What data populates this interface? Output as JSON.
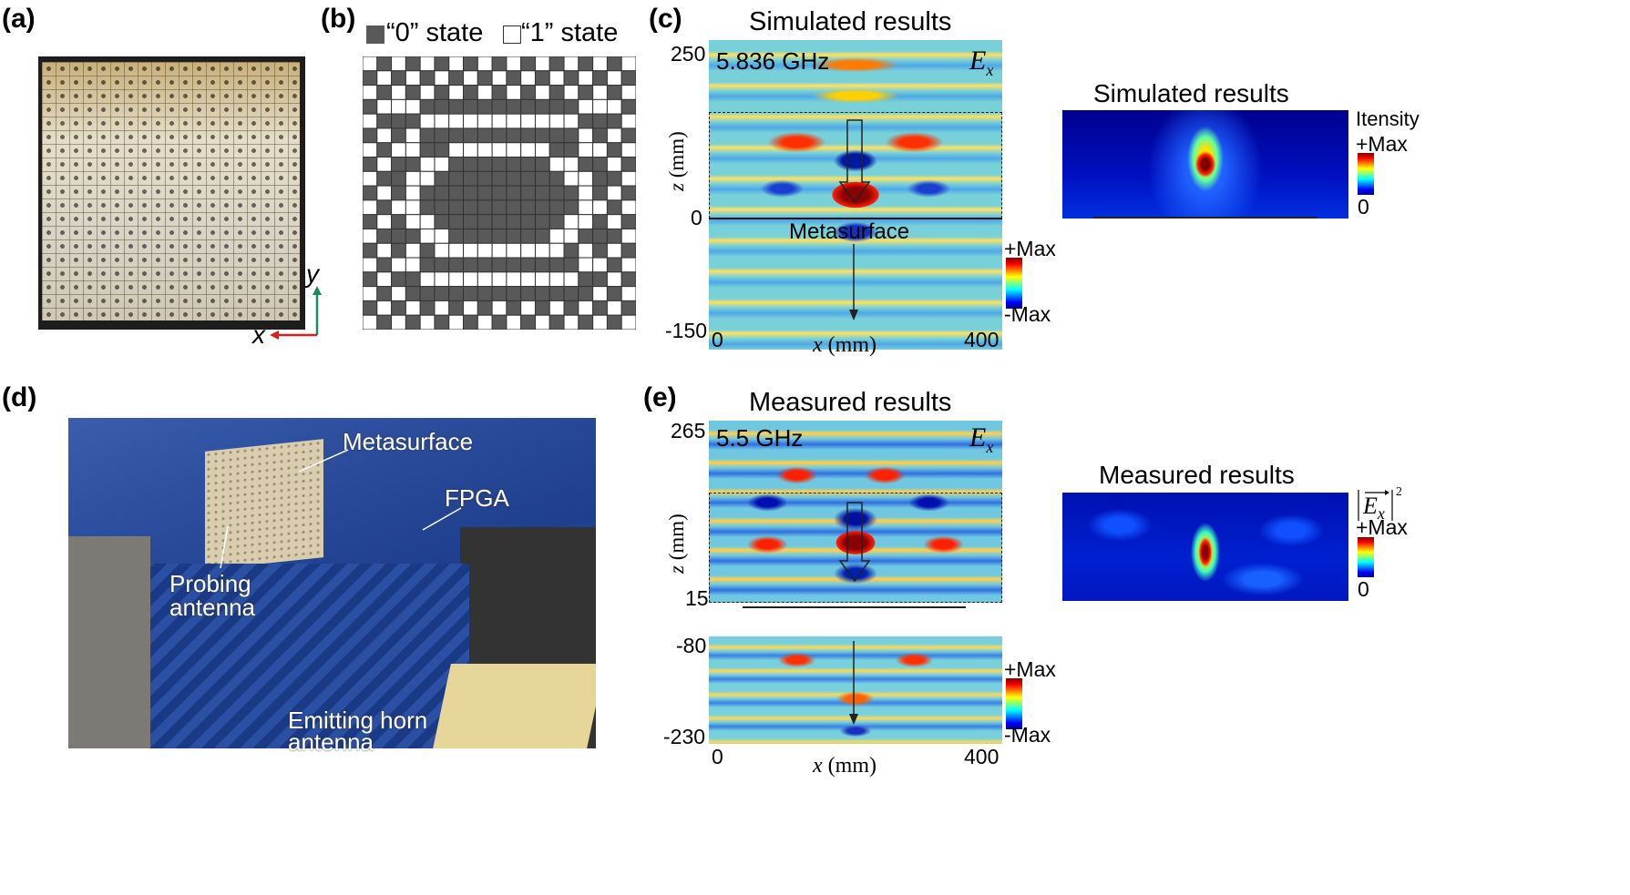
{
  "panels": {
    "a": {
      "label": "(a)"
    },
    "b": {
      "label": "(b)",
      "legend_0": "“0” state",
      "legend_1": "“1” state",
      "grid": [
        "1010101010101010101",
        "0101010101010101010",
        "1010101010101010101",
        "0111000000000001110",
        "1000111111111110001",
        "0101000000000001010",
        "1011001111111001101",
        "0100110000000110010",
        "1001100000000011001",
        "0101000000000001010",
        "1011000000000001101",
        "0101100000000011010",
        "1000110000000110001",
        "0101011111111101010",
        "1011000000000001101",
        "0100111111111110010",
        "1010000000000000101",
        "0101010101010101010",
        "1010101010101010101"
      ]
    },
    "c": {
      "label": "(c)",
      "title": "Simulated results",
      "freq": "5.836 GHz",
      "component": "E",
      "component_sub": "x",
      "y_ticks": [
        "250",
        "0",
        "-150"
      ],
      "x_ticks": [
        "0",
        "400"
      ],
      "xlabel_var": "x",
      "xlabel_unit": " (mm)",
      "ylabel_var": "z",
      "ylabel_unit": " (mm)",
      "metasurface": "Metasurface",
      "cbar_max": "+Max",
      "cbar_min": "-Max",
      "right_title": "Simulated results",
      "right_cbar_title": "Itensity",
      "right_cbar_max": "+Max",
      "right_cbar_min": "0"
    },
    "d": {
      "label": "(d)",
      "metasurface": "Metasurface",
      "fpga": "FPGA",
      "probing_1": "Probing",
      "probing_2": "antenna",
      "horn_1": "Emitting horn",
      "horn_2": "antenna"
    },
    "e": {
      "label": "(e)",
      "title": "Measured results",
      "freq": "5.5 GHz",
      "component": "E",
      "component_sub": "x",
      "upper_y_ticks": [
        "265",
        "15"
      ],
      "lower_y_ticks": [
        "-80",
        "-230"
      ],
      "x_ticks": [
        "0",
        "400"
      ],
      "xlabel_var": "x",
      "xlabel_unit": " (mm)",
      "ylabel_var": "z",
      "ylabel_unit": " (mm)",
      "cbar_max": "+Max",
      "cbar_min": "-Max",
      "right_title": "Measured results",
      "right_cbar_max": "+Max",
      "right_cbar_min": "0"
    }
  },
  "axis_labels": {
    "x": "x",
    "y": "y"
  },
  "colors": {
    "grey_state": "#595959",
    "white_state": "#ffffff",
    "field_bg": "#7fd6d0",
    "arrow_x": "#d62020",
    "arrow_y": "#1e8a5a"
  }
}
